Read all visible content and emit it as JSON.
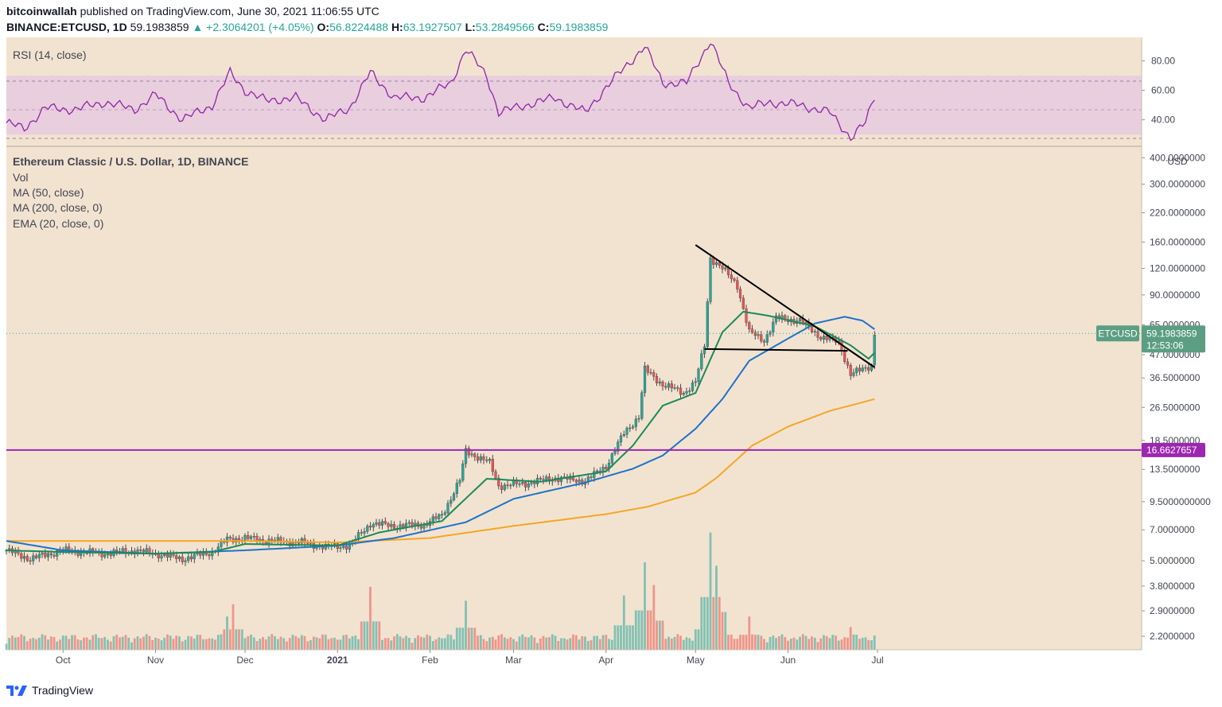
{
  "header": {
    "publisher": "bitcoinwallah",
    "published_text": "published on TradingView.com, June 30, 2021 11:06:55 UTC",
    "symbol": "BINANCE:ETCUSD, 1D",
    "last": "59.1983859",
    "change": "▲ +2.3064201 (+4.05%)",
    "o_label": "O:",
    "o": "56.8224488",
    "h_label": "H:",
    "h": "63.1927507",
    "l_label": "L:",
    "l": "53.2849566",
    "c_label": "C:",
    "c": "59.1983859"
  },
  "legend": {
    "title": "Ethereum Classic / U.S. Dollar, 1D, BINANCE",
    "vol": "Vol",
    "ma50": "MA (50, close)",
    "ma200": "MA (200, close, 0)",
    "ema20": "EMA (20, close, 0)"
  },
  "rsi_label": "RSI (14, close)",
  "price_unit": "USD",
  "price_tag": {
    "symbol": "ETCUSD",
    "value": "59.1983859",
    "countdown": "12:53:06"
  },
  "level_tag": "16.6627657",
  "colors": {
    "background": "#f2e3d1",
    "up": "#26a69a",
    "down": "#ef5350",
    "rsi": "#8e24aa",
    "rsi_band": "#e1bee7",
    "ma50": "#1e73c8",
    "ma200": "#f5a623",
    "ema20": "#1b8a5a",
    "level": "#9c27b0",
    "trendline": "#000000"
  },
  "footer": {
    "brand": "TradingView",
    "logo_icon": "tradingview-logo-icon"
  },
  "chart_data": {
    "type": "candlestick",
    "title": "Ethereum Classic / U.S. Dollar, 1D, BINANCE",
    "price_scale": "log",
    "price_ticks": [
      "400.0000000",
      "300.0000000",
      "220.0000000",
      "160.0000000",
      "120.0000000",
      "90.0000000",
      "65.0000000",
      "47.0000000",
      "36.5000000",
      "26.5000000",
      "18.5000000",
      "13.5000000",
      "9.5000000000",
      "7.0000000",
      "5.0000000",
      "3.8000000",
      "2.9000000",
      "2.2000000"
    ],
    "price_tick_values": [
      400,
      300,
      220,
      160,
      120,
      90,
      65,
      47,
      36.5,
      26.5,
      18.5,
      13.5,
      9.5,
      7,
      5,
      3.8,
      2.9,
      2.2
    ],
    "price_range": [
      1.9,
      430
    ],
    "time_ticks": [
      "Oct",
      "Nov",
      "Dec",
      "2021",
      "Feb",
      "Mar",
      "Apr",
      "May",
      "Jun",
      "Jul"
    ],
    "rsi_ticks": [
      "80.00",
      "60.00",
      "40.00"
    ],
    "rsi_tick_values": [
      80,
      60,
      40
    ],
    "rsi_range": [
      22,
      96
    ],
    "rsi_band": [
      30,
      70
    ],
    "horizontal_level": 16.6627657,
    "last_price": 59.1983859,
    "price_anchors": [
      [
        "2020-09-12",
        5.6
      ],
      [
        "2020-09-20",
        5.1
      ],
      [
        "2020-10-01",
        5.6
      ],
      [
        "2020-10-15",
        5.4
      ],
      [
        "2020-10-25",
        5.6
      ],
      [
        "2020-11-01",
        5.4
      ],
      [
        "2020-11-10",
        5.1
      ],
      [
        "2020-11-20",
        5.5
      ],
      [
        "2020-11-25",
        6.3
      ],
      [
        "2020-12-01",
        6.4
      ],
      [
        "2020-12-10",
        6.2
      ],
      [
        "2020-12-20",
        6.1
      ],
      [
        "2020-12-28",
        5.8
      ],
      [
        "2021-01-05",
        5.9
      ],
      [
        "2021-01-12",
        7.5
      ],
      [
        "2021-01-20",
        7.3
      ],
      [
        "2021-01-30",
        7.4
      ],
      [
        "2021-02-05",
        8.2
      ],
      [
        "2021-02-11",
        12.0
      ],
      [
        "2021-02-13",
        16.5
      ],
      [
        "2021-02-21",
        14.5
      ],
      [
        "2021-02-24",
        11.3
      ],
      [
        "2021-03-05",
        11.6
      ],
      [
        "2021-03-15",
        12.3
      ],
      [
        "2021-03-25",
        11.9
      ],
      [
        "2021-04-01",
        14.0
      ],
      [
        "2021-04-07",
        20.0
      ],
      [
        "2021-04-12",
        24.0
      ],
      [
        "2021-04-14",
        40.0
      ],
      [
        "2021-04-20",
        34.0
      ],
      [
        "2021-04-27",
        31.0
      ],
      [
        "2021-05-01",
        35.0
      ],
      [
        "2021-05-04",
        52.0
      ],
      [
        "2021-05-06",
        135.0
      ],
      [
        "2021-05-10",
        120.0
      ],
      [
        "2021-05-15",
        100.0
      ],
      [
        "2021-05-19",
        60.0
      ],
      [
        "2021-05-24",
        55.0
      ],
      [
        "2021-05-28",
        70.0
      ],
      [
        "2021-06-05",
        68.0
      ],
      [
        "2021-06-12",
        57.0
      ],
      [
        "2021-06-18",
        54.0
      ],
      [
        "2021-06-22",
        38.0
      ],
      [
        "2021-06-26",
        40.0
      ],
      [
        "2021-06-29",
        42.0
      ],
      [
        "2021-06-30",
        59.2
      ]
    ],
    "rsi_anchors": [
      [
        "2020-09-12",
        38
      ],
      [
        "2020-09-18",
        34
      ],
      [
        "2020-09-25",
        48
      ],
      [
        "2020-10-05",
        47
      ],
      [
        "2020-10-15",
        52
      ],
      [
        "2020-10-25",
        47
      ],
      [
        "2020-11-01",
        57
      ],
      [
        "2020-11-10",
        40
      ],
      [
        "2020-11-20",
        50
      ],
      [
        "2020-11-26",
        72
      ],
      [
        "2020-12-01",
        60
      ],
      [
        "2020-12-08",
        53
      ],
      [
        "2020-12-18",
        55
      ],
      [
        "2020-12-28",
        40
      ],
      [
        "2021-01-05",
        48
      ],
      [
        "2021-01-12",
        72
      ],
      [
        "2021-01-20",
        55
      ],
      [
        "2021-01-30",
        55
      ],
      [
        "2021-02-08",
        65
      ],
      [
        "2021-02-13",
        88
      ],
      [
        "2021-02-20",
        70
      ],
      [
        "2021-02-24",
        45
      ],
      [
        "2021-03-05",
        50
      ],
      [
        "2021-03-15",
        55
      ],
      [
        "2021-03-25",
        45
      ],
      [
        "2021-04-01",
        62
      ],
      [
        "2021-04-07",
        75
      ],
      [
        "2021-04-14",
        90
      ],
      [
        "2021-04-20",
        65
      ],
      [
        "2021-04-28",
        65
      ],
      [
        "2021-05-06",
        94
      ],
      [
        "2021-05-12",
        65
      ],
      [
        "2021-05-19",
        48
      ],
      [
        "2021-05-26",
        52
      ],
      [
        "2021-06-05",
        50
      ],
      [
        "2021-06-15",
        45
      ],
      [
        "2021-06-22",
        28
      ],
      [
        "2021-06-27",
        38
      ],
      [
        "2021-06-30",
        56
      ]
    ],
    "ma50_anchors": [
      [
        "2020-09-12",
        6.2
      ],
      [
        "2020-10-01",
        5.6
      ],
      [
        "2020-11-01",
        5.4
      ],
      [
        "2020-12-01",
        5.6
      ],
      [
        "2021-01-01",
        5.9
      ],
      [
        "2021-01-20",
        6.4
      ],
      [
        "2021-02-13",
        7.6
      ],
      [
        "2021-03-01",
        9.8
      ],
      [
        "2021-03-25",
        11.7
      ],
      [
        "2021-04-10",
        13.6
      ],
      [
        "2021-04-20",
        15.7
      ],
      [
        "2021-05-01",
        21.0
      ],
      [
        "2021-05-10",
        29.0
      ],
      [
        "2021-05-19",
        44.0
      ],
      [
        "2021-06-01",
        56.0
      ],
      [
        "2021-06-10",
        66.0
      ],
      [
        "2021-06-20",
        71.0
      ],
      [
        "2021-06-26",
        68.0
      ],
      [
        "2021-06-30",
        62.0
      ]
    ],
    "ma200_anchors": [
      [
        "2020-09-12",
        6.2
      ],
      [
        "2020-12-01",
        6.2
      ],
      [
        "2021-01-01",
        6.1
      ],
      [
        "2021-02-01",
        6.4
      ],
      [
        "2021-03-01",
        7.3
      ],
      [
        "2021-04-01",
        8.3
      ],
      [
        "2021-04-15",
        9.0
      ],
      [
        "2021-05-01",
        10.5
      ],
      [
        "2021-05-08",
        12.3
      ],
      [
        "2021-05-20",
        17.5
      ],
      [
        "2021-06-01",
        21.5
      ],
      [
        "2021-06-15",
        25.5
      ],
      [
        "2021-06-30",
        29.0
      ]
    ],
    "ema20_anchors": [
      [
        "2020-09-12",
        5.6
      ],
      [
        "2020-10-01",
        5.5
      ],
      [
        "2020-11-01",
        5.4
      ],
      [
        "2020-11-20",
        5.5
      ],
      [
        "2020-12-01",
        6.0
      ],
      [
        "2021-01-01",
        5.9
      ],
      [
        "2021-01-15",
        6.8
      ],
      [
        "2021-02-05",
        7.7
      ],
      [
        "2021-02-20",
        12.2
      ],
      [
        "2021-03-10",
        11.8
      ],
      [
        "2021-04-01",
        13.2
      ],
      [
        "2021-04-10",
        17.5
      ],
      [
        "2021-04-20",
        27.0
      ],
      [
        "2021-05-01",
        31.0
      ],
      [
        "2021-05-10",
        60.0
      ],
      [
        "2021-05-17",
        75.0
      ],
      [
        "2021-05-25",
        72.0
      ],
      [
        "2021-06-10",
        64.0
      ],
      [
        "2021-06-22",
        52.0
      ],
      [
        "2021-06-28",
        45.0
      ],
      [
        "2021-06-30",
        48.0
      ]
    ],
    "trendlines": [
      [
        [
          "2021-05-01",
          155.0
        ],
        [
          "2021-06-30",
          41.0
        ]
      ],
      [
        [
          "2021-05-04",
          50.0
        ],
        [
          "2021-06-21",
          49.0
        ]
      ],
      [
        [
          "2021-06-21",
          50.0
        ],
        [
          "2021-06-30",
          41.0
        ]
      ]
    ],
    "volume_spikes": [
      [
        "2020-11-25",
        1.9
      ],
      [
        "2020-11-27",
        2.6
      ],
      [
        "2021-01-12",
        3.6
      ],
      [
        "2021-02-13",
        2.8
      ],
      [
        "2021-04-07",
        3.1
      ],
      [
        "2021-04-14",
        5.0
      ],
      [
        "2021-04-17",
        3.7
      ],
      [
        "2021-05-04",
        2.6
      ],
      [
        "2021-05-06",
        6.7
      ],
      [
        "2021-05-08",
        4.8
      ],
      [
        "2021-05-19",
        1.9
      ],
      [
        "2021-06-22",
        1.3
      ]
    ]
  }
}
